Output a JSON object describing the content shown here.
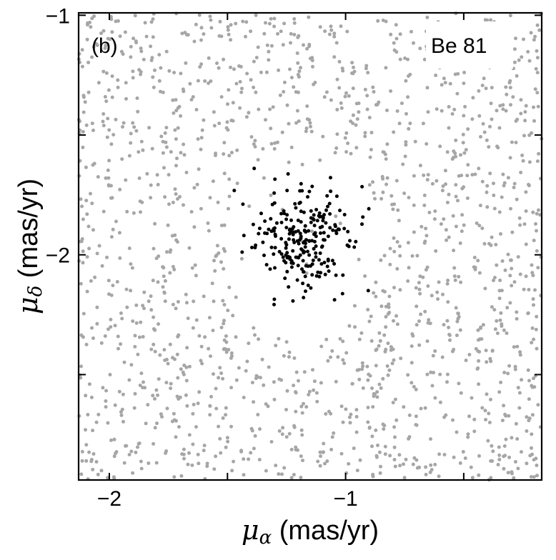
{
  "chart_data": {
    "type": "scatter",
    "panel_label": "(b)",
    "cluster_label": "Be 81",
    "xlabel": {
      "symbol": "μ",
      "subscript": "α",
      "unit": " (mas/yr)"
    },
    "ylabel": {
      "symbol": "μ",
      "subscript": "δ",
      "unit": " (mas/yr)"
    },
    "xlim": [
      -2.13,
      -0.17
    ],
    "ylim": [
      -2.94,
      -0.99
    ],
    "x_ticks": [
      -2,
      -1.5,
      -1,
      -0.5
    ],
    "x_tick_labels": [
      "−2",
      "",
      "−1",
      ""
    ],
    "y_ticks": [
      -2.5,
      -2,
      -1.5,
      -1
    ],
    "y_tick_labels": [
      "",
      "−2",
      "",
      "−1"
    ],
    "grid": false,
    "colors": {
      "field": "#a6a6a6",
      "members": "#000000",
      "axes": "#000000",
      "label_box": "#ffffff"
    },
    "series": [
      {
        "role": "field-stars",
        "color": "#a6a6a6",
        "count": 1800,
        "x_range": [
          -2.13,
          -0.17
        ],
        "y_range": [
          -2.94,
          -0.99
        ],
        "distribution": "uniform"
      },
      {
        "role": "cluster-members",
        "color": "#000000",
        "count": 230,
        "center": [
          -1.18,
          -1.95
        ],
        "sigma": [
          0.1,
          0.11
        ],
        "x_range": [
          -1.5,
          -0.84
        ],
        "y_range": [
          -2.23,
          -1.63
        ]
      }
    ]
  }
}
